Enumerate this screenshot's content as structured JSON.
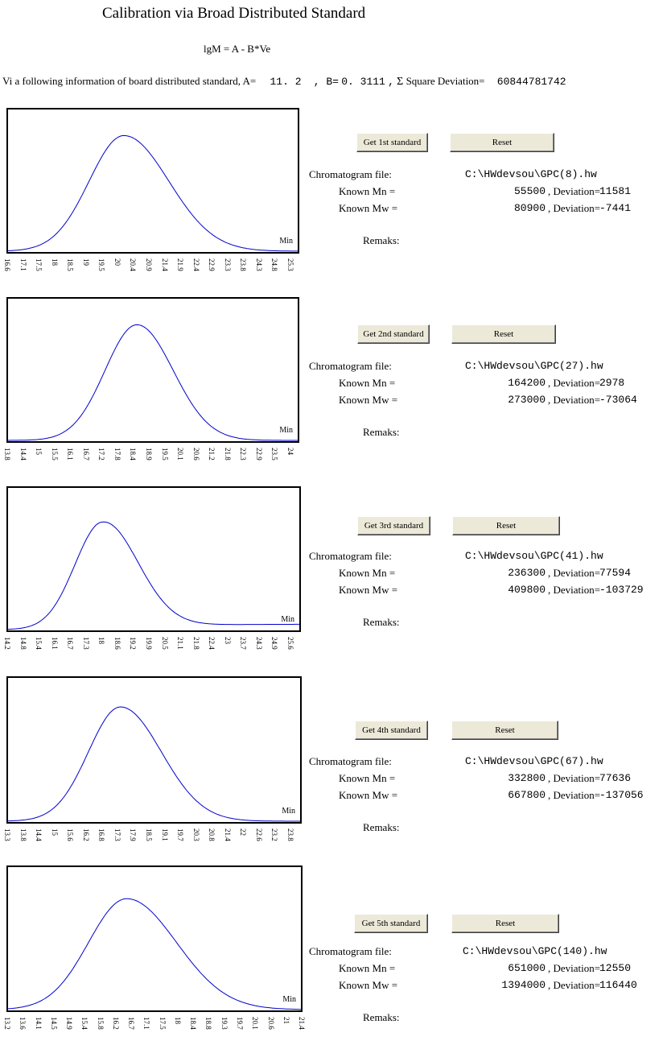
{
  "header": {
    "title": "Calibration via Broad Distributed Standard",
    "formula": "lgM = A - B*Ve"
  },
  "summary": {
    "prefix": "Vi a following information of board distributed standard, A=",
    "a_value": "11. 2",
    "b_label": ", B=",
    "b_value": "0. 3111",
    "sigma_symbol": "Σ",
    "sq_dev_label": "Square Deviation=",
    "sq_dev_value": "60844781742"
  },
  "labels": {
    "chromatogram": "Chromatogram file:",
    "known_mn": "Known Mn  =",
    "known_mw": "Known Mw  =",
    "deviation": ", Deviation=",
    "remarks": "Remaks:",
    "min": "Min",
    "reset": "Reset"
  },
  "standards": [
    {
      "button_label": "Get 1st standard",
      "file": "C:\\HWdevsou\\GPC(8).hw",
      "mn": "55500",
      "mn_dev": "11581",
      "mw": "80900",
      "mw_dev": "-7441",
      "ticks": [
        "16.6",
        "17.1",
        "17.5",
        "18",
        "18.5",
        "19",
        "19.5",
        "20",
        "20.4",
        "20.9",
        "21.4",
        "21.9",
        "22.4",
        "22.9",
        "23.3",
        "23.8",
        "24.3",
        "24.8",
        "25.3"
      ],
      "peak": {
        "center": 0.4,
        "sigma_left": 0.12,
        "sigma_right": 0.155,
        "height": 0.86,
        "baseline": 0.0
      }
    },
    {
      "button_label": "Get 2nd standard",
      "file": "C:\\HWdevsou\\GPC(27).hw",
      "mn": "164200",
      "mn_dev": "2978",
      "mw": "273000",
      "mw_dev": "-73064",
      "ticks": [
        "13.8",
        "14.4",
        "15",
        "15.5",
        "16.1",
        "16.7",
        "17.2",
        "17.8",
        "18.4",
        "18.9",
        "19.5",
        "20.1",
        "20.6",
        "21.2",
        "21.8",
        "22.3",
        "22.9",
        "23.5",
        "24"
      ],
      "peak": {
        "center": 0.445,
        "sigma_left": 0.11,
        "sigma_right": 0.125,
        "height": 0.86,
        "baseline": 0.0
      }
    },
    {
      "button_label": "Get 3rd standard",
      "file": "C:\\HWdevsou\\GPC(41).hw",
      "mn": "236300",
      "mn_dev": "77594",
      "mw": "409800",
      "mw_dev": "-103729",
      "ticks": [
        "14.2",
        "14.8",
        "15.4",
        "16.1",
        "16.7",
        "17.3",
        "18",
        "18.6",
        "19.2",
        "19.9",
        "20.5",
        "21.1",
        "21.8",
        "22.4",
        "23",
        "23.7",
        "24.3",
        "24.9",
        "25.6"
      ],
      "peak": {
        "center": 0.325,
        "sigma_left": 0.095,
        "sigma_right": 0.12,
        "height": 0.8,
        "baseline": 0.04
      }
    },
    {
      "button_label": "Get 4th standard",
      "file": "C:\\HWdevsou\\GPC(67).hw",
      "mn": "332800",
      "mn_dev": "77636",
      "mw": "667800",
      "mw_dev": "-137056",
      "ticks": [
        "13.3",
        "13.8",
        "14.4",
        "15",
        "15.6",
        "16.2",
        "16.8",
        "17.3",
        "17.9",
        "18.5",
        "19.1",
        "19.7",
        "20.3",
        "20.8",
        "21.4",
        "22",
        "22.6",
        "23.2",
        "23.8"
      ],
      "peak": {
        "center": 0.385,
        "sigma_left": 0.11,
        "sigma_right": 0.14,
        "height": 0.84,
        "baseline": 0.0
      }
    },
    {
      "button_label": "Get 5th standard",
      "file": "C:\\HWdevsou\\GPC(140).hw",
      "mn": "651000",
      "mn_dev": "12550",
      "mw": "1394000",
      "mw_dev": "116440",
      "ticks": [
        "13.2",
        "13.6",
        "14.1",
        "14.5",
        "14.9",
        "15.4",
        "15.8",
        "16.2",
        "16.7",
        "17.1",
        "17.5",
        "18",
        "18.4",
        "18.8",
        "19.3",
        "19.7",
        "20.1",
        "20.6",
        "21",
        "21.4"
      ],
      "peak": {
        "center": 0.405,
        "sigma_left": 0.13,
        "sigma_right": 0.17,
        "height": 0.82,
        "baseline": 0.0
      }
    }
  ],
  "colors": {
    "curve": "#0000cc"
  }
}
